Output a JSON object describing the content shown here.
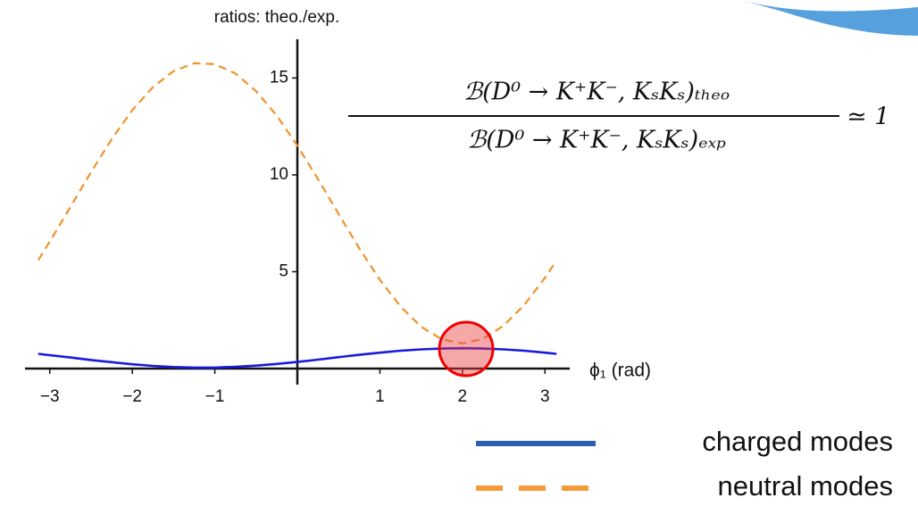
{
  "chart_data": {
    "type": "line",
    "y_label": "ratios: theo./exp.",
    "x_label": "ϕ₁ (rad)",
    "annotation": {
      "numerator": "ℬ(D⁰ → K⁺K⁻, KₛKₛ)ₜₕₑₒ",
      "denominator": "ℬ(D⁰ → K⁺K⁻, KₛKₛ)ₑₓₚ",
      "relation": "≃ 1"
    },
    "x": [
      -3.14,
      -3.0,
      -2.75,
      -2.5,
      -2.25,
      -2.0,
      -1.75,
      -1.5,
      -1.25,
      -1.0,
      -0.75,
      -0.5,
      -0.25,
      0,
      0.25,
      0.5,
      0.75,
      1.0,
      1.25,
      1.5,
      1.75,
      2.0,
      2.25,
      2.5,
      2.75,
      3.0,
      3.14
    ],
    "series": [
      {
        "name": "charged modes",
        "color": "#1a1adc",
        "legend_color": "#2e5fb0",
        "dashed": false,
        "values": [
          0.76,
          0.69,
          0.57,
          0.44,
          0.33,
          0.22,
          0.14,
          0.08,
          0.05,
          0.05,
          0.09,
          0.15,
          0.24,
          0.34,
          0.46,
          0.59,
          0.71,
          0.82,
          0.92,
          0.99,
          1.03,
          1.05,
          1.03,
          0.99,
          0.92,
          0.82,
          0.76
        ]
      },
      {
        "name": "neutral modes",
        "color": "#f0922a",
        "legend_color": "#f59a38",
        "dashed": true,
        "values": [
          5.6,
          6.55,
          8.34,
          10.14,
          11.84,
          13.34,
          14.53,
          15.36,
          15.76,
          15.72,
          15.23,
          14.32,
          13.06,
          11.51,
          9.78,
          7.98,
          6.21,
          4.58,
          3.2,
          2.16,
          1.51,
          1.3,
          1.54,
          2.22,
          3.29,
          4.69,
          5.57
        ]
      }
    ],
    "xlim": [
      -3.3,
      3.3
    ],
    "ylim": [
      0,
      17
    ],
    "xticks": [
      {
        "value": -3,
        "label": "−3"
      },
      {
        "value": -2,
        "label": "−2"
      },
      {
        "value": -1,
        "label": "−1"
      },
      1,
      2,
      3
    ],
    "yticks": [
      5,
      10,
      15
    ],
    "legend_position": "lower right"
  }
}
